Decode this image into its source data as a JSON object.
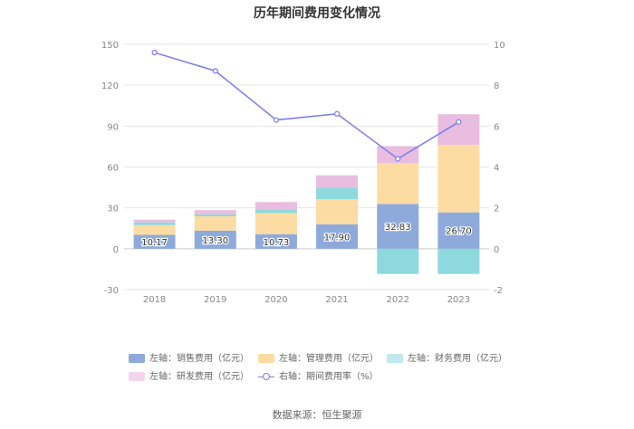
{
  "chart_data": {
    "type": "bar",
    "title": "历年期间费用变化情况",
    "categories": [
      "2018",
      "2019",
      "2020",
      "2021",
      "2022",
      "2023"
    ],
    "series": [
      {
        "name": "左轴：销售费用（亿元）",
        "axis": "left",
        "color": "#8eaadb",
        "values": [
          10.17,
          13.3,
          10.73,
          17.9,
          32.83,
          26.7
        ],
        "labels": [
          "10.17",
          "13.30",
          "10.73",
          "17.90",
          "32.83",
          "26.70"
        ]
      },
      {
        "name": "左轴：管理费用（亿元）",
        "axis": "left",
        "color": "#fcdca2",
        "values": [
          7.2,
          10.5,
          15.5,
          18.5,
          30.0,
          49.5
        ]
      },
      {
        "name": "左轴：财务费用（亿元）",
        "axis": "left",
        "color": "#8ed9dd",
        "values": [
          2.0,
          1.5,
          2.5,
          8.5,
          -18.5,
          -18.5
        ]
      },
      {
        "name": "左轴：研发费用（亿元）",
        "axis": "left",
        "color": "#e8bde0",
        "values": [
          2.0,
          3.0,
          5.5,
          9.0,
          12.5,
          22.5
        ]
      },
      {
        "name": "右轴：期间费用率（%）",
        "axis": "right",
        "type": "line",
        "color": "#7b7bf3",
        "values": [
          9.6,
          8.7,
          6.3,
          6.6,
          4.4,
          6.2
        ]
      }
    ],
    "y_left": {
      "ticks": [
        "150",
        "120",
        "90",
        "60",
        "30",
        "0",
        "-30"
      ],
      "ylim": [
        -30,
        150
      ]
    },
    "y_right": {
      "ticks": [
        "10",
        "8",
        "6",
        "4",
        "2",
        "0",
        "-2"
      ],
      "ylim": [
        -2,
        10
      ]
    },
    "legend_position": "bottom",
    "grid": true
  },
  "legend": [
    {
      "label": "左轴：销售费用（亿元）",
      "color": "#8eaadb",
      "kind": "bar"
    },
    {
      "label": "左轴：管理费用（亿元）",
      "color": "#fcdca2",
      "kind": "bar"
    },
    {
      "label": "左轴：财务费用（亿元）",
      "color": "#bfe9ec",
      "kind": "bar"
    },
    {
      "label": "左轴：研发费用（亿元）",
      "color": "#f2d5ec",
      "kind": "bar"
    },
    {
      "label": "右轴：期间费用率（%）",
      "color": "#7b7bf3",
      "kind": "line"
    }
  ],
  "source": "数据来源：恒生聚源"
}
